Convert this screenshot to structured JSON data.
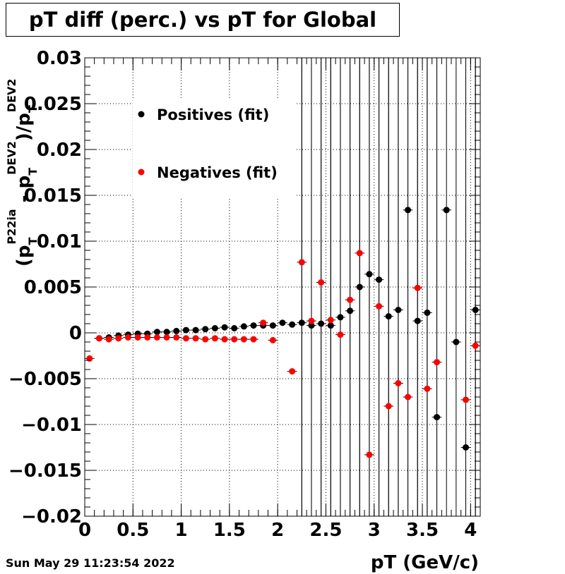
{
  "title": "pT diff (perc.) vs pT for Global",
  "footer_date": "Sun May 29 11:23:54 2022",
  "chart_data": {
    "type": "scatter",
    "title": "pT diff (perc.) vs pT for Global",
    "xlabel": "pT (GeV/c)",
    "ylabel": {
      "open": "(p",
      "sub1": "T",
      "sup1": "P22ia",
      "minus": " - p",
      "sub2": "T",
      "sup2": "DEV2",
      "close": ")/p",
      "sub3": "T",
      "sup3": "DEV2"
    },
    "xlim": [
      0,
      4.1
    ],
    "ylim": [
      -0.02,
      0.03
    ],
    "x_ticks": [
      0,
      0.5,
      1,
      1.5,
      2,
      2.5,
      3,
      3.5,
      4
    ],
    "x_tick_labels": [
      "0",
      "0.5",
      "1",
      "1.5",
      "2",
      "2.5",
      "3",
      "3.5",
      "4"
    ],
    "y_ticks": [
      -0.02,
      -0.015,
      -0.01,
      -0.005,
      0,
      0.005,
      0.01,
      0.015,
      0.02,
      0.025,
      0.03
    ],
    "y_tick_labels": [
      "−0.02",
      "−0.015",
      "−0.01",
      "−0.005",
      "0",
      "0.005",
      "0.01",
      "0.015",
      "0.02",
      "0.025",
      "0.03"
    ],
    "grid": true,
    "legend_position": "top-left inside",
    "x_bin_halfwidth": 0.05,
    "series": [
      {
        "name": "Positives (fit)",
        "color": "#000000",
        "points": [
          {
            "x": 0.15,
            "y": -0.0006,
            "err": 0.0001
          },
          {
            "x": 0.25,
            "y": -0.0005,
            "err": 0.0001
          },
          {
            "x": 0.35,
            "y": -0.0003,
            "err": 0.0001
          },
          {
            "x": 0.45,
            "y": -0.0002,
            "err": 0.0001
          },
          {
            "x": 0.55,
            "y": -0.0001,
            "err": 0.0001
          },
          {
            "x": 0.65,
            "y": -0.0001,
            "err": 0.0001
          },
          {
            "x": 0.75,
            "y": 0.0001,
            "err": 0.0001
          },
          {
            "x": 0.85,
            "y": 0.0001,
            "err": 0.0001
          },
          {
            "x": 0.95,
            "y": 0.0002,
            "err": 0.0001
          },
          {
            "x": 1.05,
            "y": 0.0003,
            "err": 0.0001
          },
          {
            "x": 1.15,
            "y": 0.0003,
            "err": 0.0001
          },
          {
            "x": 1.25,
            "y": 0.0004,
            "err": 0.0001
          },
          {
            "x": 1.35,
            "y": 0.0005,
            "err": 0.0001
          },
          {
            "x": 1.45,
            "y": 0.0006,
            "err": 0.0001
          },
          {
            "x": 1.55,
            "y": 0.0005,
            "err": 0.0001
          },
          {
            "x": 1.65,
            "y": 0.0007,
            "err": 0.0001
          },
          {
            "x": 1.75,
            "y": 0.0008,
            "err": 0.0001
          },
          {
            "x": 1.85,
            "y": 0.0008,
            "err": 0.0002
          },
          {
            "x": 1.95,
            "y": 0.0008,
            "err": 0.0002
          },
          {
            "x": 2.05,
            "y": 0.0011,
            "err": 0.0002
          },
          {
            "x": 2.15,
            "y": 0.0009,
            "err": 0.0003
          },
          {
            "x": 2.25,
            "y": 0.0011,
            "err": 0.05
          },
          {
            "x": 2.35,
            "y": 0.0008,
            "err": 0.05
          },
          {
            "x": 2.45,
            "y": 0.001,
            "err": 0.05
          },
          {
            "x": 2.55,
            "y": 0.0008,
            "err": 0.05
          },
          {
            "x": 2.65,
            "y": 0.0017,
            "err": 0.05
          },
          {
            "x": 2.75,
            "y": 0.0024,
            "err": 0.05
          },
          {
            "x": 2.85,
            "y": 0.005,
            "err": 0.05
          },
          {
            "x": 2.95,
            "y": 0.0064,
            "err": 0.05
          },
          {
            "x": 3.05,
            "y": 0.0058,
            "err": 0.05
          },
          {
            "x": 3.15,
            "y": 0.0018,
            "err": 0.05
          },
          {
            "x": 3.25,
            "y": 0.0025,
            "err": 0.05
          },
          {
            "x": 3.35,
            "y": 0.0134,
            "err": 0.05
          },
          {
            "x": 3.45,
            "y": 0.0013,
            "err": 0.05
          },
          {
            "x": 3.55,
            "y": 0.0022,
            "err": 0.05
          },
          {
            "x": 3.65,
            "y": -0.0092,
            "err": 0.05
          },
          {
            "x": 3.75,
            "y": 0.0134,
            "err": 0.05
          },
          {
            "x": 3.85,
            "y": -0.001,
            "err": 0.05
          },
          {
            "x": 3.95,
            "y": -0.0125,
            "err": 0.05
          },
          {
            "x": 4.05,
            "y": 0.0025,
            "err": 0.05
          }
        ]
      },
      {
        "name": "Negatives (fit)",
        "color": "#ff0000",
        "points": [
          {
            "x": 0.05,
            "y": -0.0028,
            "err": 0.0001
          },
          {
            "x": 0.15,
            "y": -0.0006,
            "err": 0.0001
          },
          {
            "x": 0.25,
            "y": -0.0007,
            "err": 0.0001
          },
          {
            "x": 0.35,
            "y": -0.0006,
            "err": 0.0001
          },
          {
            "x": 0.45,
            "y": -0.0005,
            "err": 0.0001
          },
          {
            "x": 0.55,
            "y": -0.0005,
            "err": 0.0001
          },
          {
            "x": 0.65,
            "y": -0.0005,
            "err": 0.0001
          },
          {
            "x": 0.75,
            "y": -0.0005,
            "err": 0.0001
          },
          {
            "x": 0.85,
            "y": -0.0005,
            "err": 0.0001
          },
          {
            "x": 0.95,
            "y": -0.0005,
            "err": 0.0001
          },
          {
            "x": 1.05,
            "y": -0.0006,
            "err": 0.0001
          },
          {
            "x": 1.15,
            "y": -0.0006,
            "err": 0.0001
          },
          {
            "x": 1.25,
            "y": -0.0007,
            "err": 0.0001
          },
          {
            "x": 1.35,
            "y": -0.0006,
            "err": 0.0001
          },
          {
            "x": 1.45,
            "y": -0.0007,
            "err": 0.0001
          },
          {
            "x": 1.55,
            "y": -0.0007,
            "err": 0.0001
          },
          {
            "x": 1.65,
            "y": -0.0007,
            "err": 0.0001
          },
          {
            "x": 1.75,
            "y": -0.0007,
            "err": 0.0001
          },
          {
            "x": 1.85,
            "y": 0.0011,
            "err": 0.0002
          },
          {
            "x": 1.95,
            "y": -0.0008,
            "err": 0.0002
          },
          {
            "x": 2.15,
            "y": -0.0042,
            "err": 0.0003
          },
          {
            "x": 2.25,
            "y": 0.0077,
            "err": 0.05
          },
          {
            "x": 2.35,
            "y": 0.0013,
            "err": 0.05
          },
          {
            "x": 2.45,
            "y": 0.0055,
            "err": 0.05
          },
          {
            "x": 2.55,
            "y": 0.0014,
            "err": 0.05
          },
          {
            "x": 2.65,
            "y": -0.0002,
            "err": 0.05
          },
          {
            "x": 2.75,
            "y": 0.0036,
            "err": 0.05
          },
          {
            "x": 2.85,
            "y": 0.0087,
            "err": 0.05
          },
          {
            "x": 2.95,
            "y": -0.0133,
            "err": 0.05
          },
          {
            "x": 3.05,
            "y": 0.0029,
            "err": 0.05
          },
          {
            "x": 3.15,
            "y": -0.008,
            "err": 0.05
          },
          {
            "x": 3.25,
            "y": -0.0055,
            "err": 0.05
          },
          {
            "x": 3.35,
            "y": -0.007,
            "err": 0.05
          },
          {
            "x": 3.45,
            "y": 0.0049,
            "err": 0.05
          },
          {
            "x": 3.55,
            "y": -0.0061,
            "err": 0.05
          },
          {
            "x": 3.65,
            "y": -0.0032,
            "err": 0.05
          },
          {
            "x": 3.95,
            "y": -0.0073,
            "err": 0.05
          },
          {
            "x": 4.05,
            "y": -0.0014,
            "err": 0.05
          }
        ]
      }
    ]
  }
}
